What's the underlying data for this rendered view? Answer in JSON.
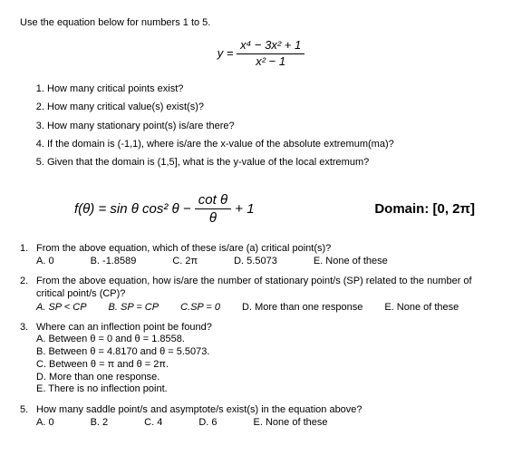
{
  "section1": {
    "instr": "Use the equation below for numbers 1 to 5.",
    "eq_lhs": "y =",
    "eq_num": "x⁴ − 3x² + 1",
    "eq_den": "x² − 1",
    "q1": "How many critical points exist?",
    "q2": "How many critical value(s) exist(s)?",
    "q3": "How many stationary point(s) is/are there?",
    "q4": "If the domain is (-1,1), where is/are the x-value of the absolute extremum(ma)?",
    "q5": "Given that the domain is (1,5], what is the y-value of the local extremum?"
  },
  "section2": {
    "eq": "f(θ) = sin θ cos² θ − ",
    "eq_frac_num": "cot θ",
    "eq_frac_den": "θ",
    "eq_tail": " + 1",
    "domain": "Domain: [0, 2π]",
    "q1": {
      "text": "From the above equation, which of these is/are (a) critical point(s)?",
      "A": "A.  0",
      "B": "B. -1.8589",
      "C": "C. 2π",
      "D": "D. 5.5073",
      "E": "E. None of these"
    },
    "q2": {
      "text": "From the above equation, how is/are the number of stationary point/s (SP) related to the number of critical point/s (CP)?",
      "A": "A.  SP < CP",
      "B": "B. SP = CP",
      "C": "C.SP = 0",
      "D": "D. More than one response",
      "E": "E. None of these"
    },
    "q3": {
      "text": "Where can an inflection point be found?",
      "A": "A.   Between θ = 0 and θ = 1.8558.",
      "B": "B.   Between θ = 4.8170 and θ = 5.5073.",
      "C": "C.   Between θ = π and θ = 2π.",
      "D": "D.   More than one response.",
      "E": "E.   There is no inflection point."
    },
    "q5": {
      "text": "How many saddle point/s and asymptote/s exist(s) in the equation above?",
      "A": "A.  0",
      "B": "B. 2",
      "C": "C. 4",
      "D": "D. 6",
      "E": "E. None of these"
    }
  }
}
